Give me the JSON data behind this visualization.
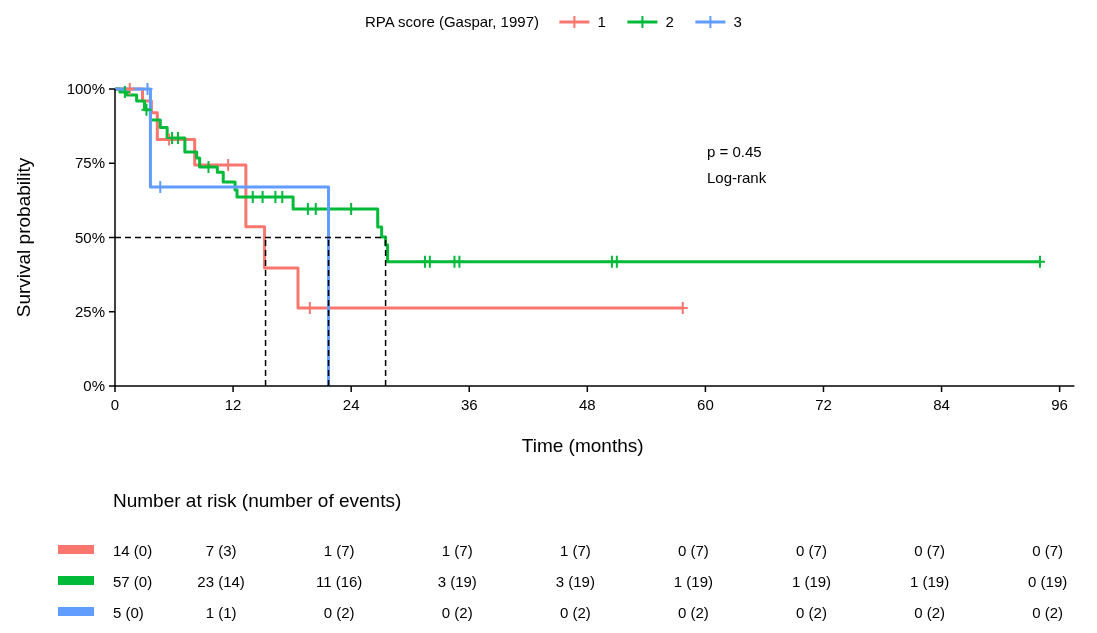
{
  "chart_data": {
    "type": "step",
    "xlabel": "Time (months)",
    "ylabel": "Survival probability",
    "legend_title": "RPA score (Gaspar, 1997)",
    "legend": "top",
    "grid": false,
    "xlim": [
      0,
      97.5
    ],
    "xticks": [
      0,
      12,
      24,
      36,
      48,
      60,
      72,
      84,
      96
    ],
    "ylim": [
      0,
      100
    ],
    "yticks": [
      {
        "value": 0,
        "label": "0%"
      },
      {
        "value": 25,
        "label": "25%"
      },
      {
        "value": 50,
        "label": "50%"
      },
      {
        "value": 75,
        "label": "75%"
      },
      {
        "value": 100,
        "label": "100%"
      }
    ],
    "series": [
      {
        "name": "1",
        "color": "#f8766d",
        "marker": "none",
        "x": [
          0,
          2.8,
          3.7,
          4.3,
          8.1,
          13.3,
          15.2,
          18.6,
          57.7
        ],
        "values": [
          100,
          96,
          92,
          83,
          74.4,
          53.6,
          39.7,
          26.3,
          26.3
        ]
      },
      {
        "name": "2",
        "color": "#00ba38",
        "marker": "none",
        "x": [
          0,
          0.5,
          1.2,
          2.2,
          3.0,
          3.6,
          4.6,
          5.3,
          7.1,
          8.3,
          8.6,
          10.4,
          11.0,
          12.2,
          12.4,
          18.1,
          26.7,
          27.1,
          27.5,
          27.7,
          94.0
        ],
        "values": [
          100,
          99,
          98,
          96,
          93,
          89.6,
          87,
          83.5,
          78.8,
          76.8,
          73.7,
          72,
          68.7,
          66,
          63.6,
          59.6,
          53.5,
          50.2,
          47.5,
          41.8,
          41.8
        ]
      },
      {
        "name": "3",
        "color": "#619cff",
        "marker": "none",
        "x": [
          0,
          3.6,
          21.7
        ],
        "values": [
          100,
          67,
          0
        ]
      },
      {
        "color": "#f8766d",
        "type": "scatter",
        "marker": "cross",
        "x": [
          1.5,
          5.5,
          11.5,
          19.8,
          57.7
        ],
        "values": [
          100,
          83,
          74.4,
          26.3,
          26.3
        ]
      },
      {
        "color": "#00ba38",
        "type": "scatter",
        "marker": "cross",
        "x": [
          1.0,
          3.2,
          5.8,
          6.4,
          9.5,
          14.0,
          15.0,
          16.3,
          17.0,
          19.6,
          20.4,
          24.0,
          31.5,
          32.0,
          34.5,
          35.0,
          50.5,
          51.0,
          94.0
        ],
        "values": [
          99,
          93,
          83.5,
          83.5,
          73.7,
          63.6,
          63.6,
          63.6,
          63.6,
          59.6,
          59.6,
          59.6,
          41.8,
          41.8,
          41.8,
          41.8,
          41.8,
          41.8,
          41.8
        ]
      },
      {
        "color": "#619cff",
        "type": "scatter",
        "marker": "cross",
        "x": [
          3.3,
          4.6
        ],
        "values": [
          100,
          67
        ]
      }
    ],
    "ref_lines": [
      {
        "axis": "y",
        "value": 50,
        "color": "#000000",
        "line_style": "dashed"
      },
      {
        "axis": "x",
        "value": 15.3,
        "color": "#000000",
        "line_style": "dashed"
      },
      {
        "axis": "x",
        "value": 21.7,
        "color": "#000000",
        "line_style": "dashed"
      },
      {
        "axis": "x",
        "value": 27.5,
        "color": "#000000",
        "line_style": "dashed"
      }
    ],
    "annotations": [
      "p = 0.45",
      "Log-rank",
      "Number at risk (number of events)",
      "14 (0)",
      "7 (3)",
      "1 (7)",
      "1 (7)",
      "1 (7)",
      "0 (7)",
      "0 (7)",
      "0 (7)",
      "0 (7)",
      "57 (0)",
      "23 (14)",
      "11 (16)",
      "3 (19)",
      "3 (19)",
      "1 (19)",
      "1 (19)",
      "1 (19)",
      "0 (19)",
      "5 (0)",
      "1 (1)",
      "0 (2)",
      "0 (2)",
      "0 (2)",
      "0 (2)",
      "0 (2)",
      "0 (2)",
      "0 (2)"
    ]
  }
}
